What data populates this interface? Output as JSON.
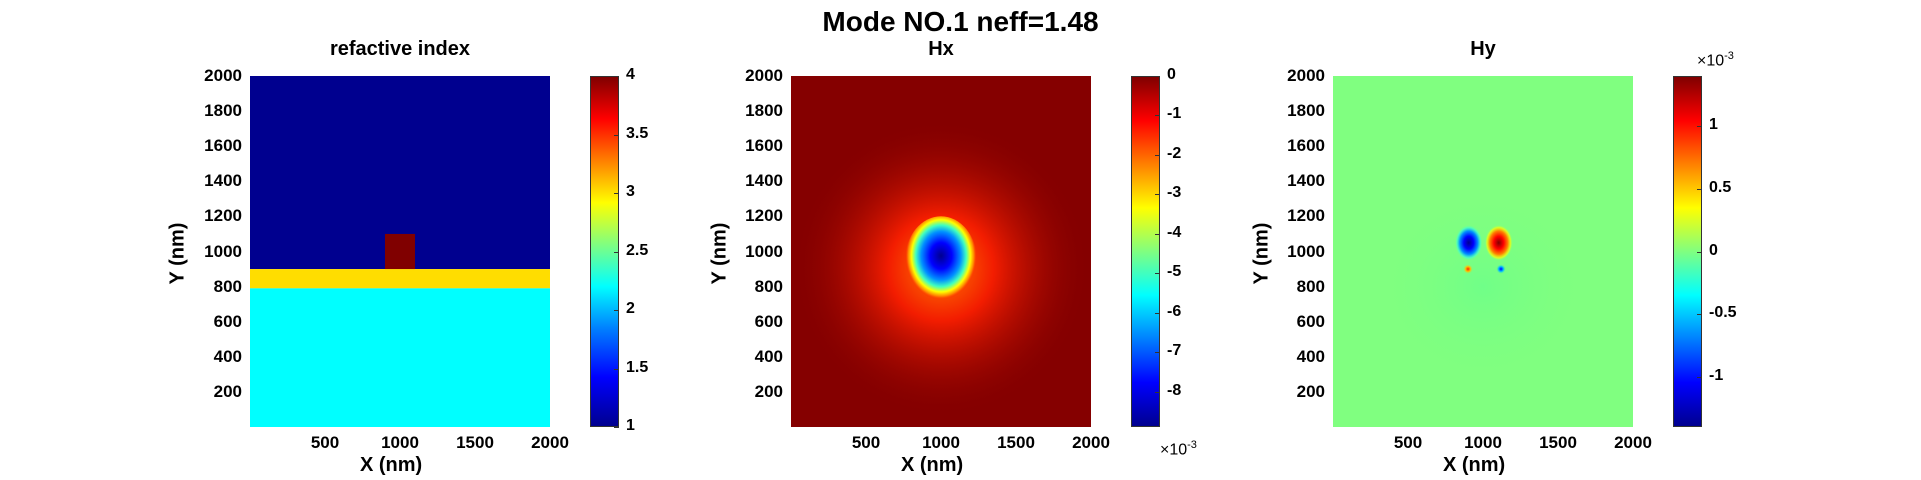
{
  "figure_title": "Mode NO.1 neff=1.48",
  "chart_data": [
    {
      "type": "heatmap",
      "title": "refactive index",
      "xlabel": "X (nm)",
      "ylabel": "Y (nm)",
      "xlim": [
        0,
        2000
      ],
      "ylim": [
        0,
        2000
      ],
      "xticks": [
        "500",
        "1000",
        "1500",
        "2000"
      ],
      "yticks": [
        "200",
        "400",
        "600",
        "800",
        "1000",
        "1200",
        "1400",
        "1600",
        "1800",
        "2000"
      ],
      "colorbar": {
        "ticks": [
          "1",
          "1.5",
          "2",
          "2.5",
          "3",
          "3.5",
          "4"
        ],
        "range": [
          1,
          4
        ],
        "exponent": ""
      },
      "regions": [
        {
          "name": "cladding",
          "x": [
            0,
            2000
          ],
          "y": [
            900,
            2000
          ],
          "value": 1.0
        },
        {
          "name": "film",
          "x": [
            0,
            2000
          ],
          "y": [
            790,
            900
          ],
          "value": 3.0
        },
        {
          "name": "substrate",
          "x": [
            0,
            2000
          ],
          "y": [
            0,
            790
          ],
          "value": 2.2
        },
        {
          "name": "core",
          "x": [
            900,
            1100
          ],
          "y": [
            900,
            1100
          ],
          "value": 4.0
        }
      ]
    },
    {
      "type": "heatmap",
      "title": "Hx",
      "xlabel": "X (nm)",
      "ylabel": "Y (nm)",
      "xlim": [
        0,
        2000
      ],
      "ylim": [
        0,
        2000
      ],
      "xticks": [
        "500",
        "1000",
        "1500",
        "2000"
      ],
      "yticks": [
        "200",
        "400",
        "600",
        "800",
        "1000",
        "1200",
        "1400",
        "1600",
        "1800",
        "2000"
      ],
      "colorbar": {
        "ticks": [
          "0",
          "-1",
          "-2",
          "-3",
          "-4",
          "-5",
          "-6",
          "-7",
          "-8"
        ],
        "range": [
          -0.0089,
          0
        ],
        "exponent": "-3"
      },
      "field": {
        "center": [
          1000,
          950
        ],
        "peak": -0.0089
      }
    },
    {
      "type": "heatmap",
      "title": "Hy",
      "xlabel": "X (nm)",
      "ylabel": "Y (nm)",
      "xlim": [
        0,
        2000
      ],
      "ylim": [
        0,
        2000
      ],
      "xticks": [
        "500",
        "1000",
        "1500",
        "2000"
      ],
      "yticks": [
        "200",
        "400",
        "600",
        "800",
        "1000",
        "1200",
        "1400",
        "1600",
        "1800",
        "2000"
      ],
      "colorbar": {
        "ticks": [
          "1",
          "0.5",
          "0",
          "-0.5",
          "-1"
        ],
        "range": [
          -0.0014,
          0.0014
        ],
        "exponent": "-3"
      },
      "field": {
        "lobes": [
          {
            "x": 905,
            "y": 1050,
            "value": -0.0014
          },
          {
            "x": 1105,
            "y": 1050,
            "value": 0.0014
          },
          {
            "x": 900,
            "y": 900,
            "value": 0.0009
          },
          {
            "x": 1120,
            "y": 900,
            "value": -0.0009
          }
        ]
      }
    }
  ]
}
